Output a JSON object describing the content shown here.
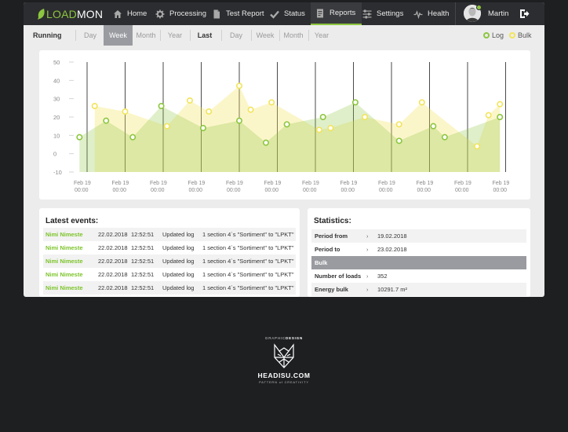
{
  "brand": {
    "part1": "LOAD",
    "part2": "MON"
  },
  "nav": {
    "items": [
      {
        "label": "Home",
        "icon": "home-icon"
      },
      {
        "label": "Processing",
        "icon": "gear-icon"
      },
      {
        "label": "Test Report",
        "icon": "document-icon"
      },
      {
        "label": "Status",
        "icon": "check-icon"
      },
      {
        "label": "Reports",
        "icon": "report-icon",
        "active": true
      },
      {
        "label": "Settings",
        "icon": "sliders-icon"
      },
      {
        "label": "Health",
        "icon": "pulse-icon"
      }
    ],
    "user": "Martin"
  },
  "filters": {
    "running_label": "Running",
    "running_options": [
      "Day",
      "Week",
      "Month",
      "Year"
    ],
    "running_selected": "Week",
    "last_label": "Last",
    "last_options": [
      "Day",
      "Week",
      "Month",
      "Year"
    ],
    "legend_log": "Log",
    "legend_bulk": "Bulk"
  },
  "colors": {
    "accent_green": "#8dc63f",
    "log_line": "#8dc63f",
    "bulk_line": "#f2e45a",
    "nav_bg": "#2c2d30"
  },
  "chart_data": {
    "type": "area",
    "x": [
      "Feb 19\n00:00",
      "Feb 19\n00:00",
      "Feb 19\n00:00",
      "Feb 19\n00:00",
      "Feb 19\n00:00",
      "Feb 19\n00:00",
      "Feb 19\n00:00",
      "Feb 19\n00:00",
      "Feb 19\n00:00",
      "Feb 19\n00:00",
      "Feb 19\n00:00",
      "Feb 19\n00:00",
      "Feb 19\n00:00"
    ],
    "xtick_labels": [
      "Feb 19 00:00",
      "Feb 19 00:00",
      "Feb 19 00:00",
      "Feb 19 00:00",
      "Feb 19 00:00",
      "Feb 19 00:00",
      "Feb 19 00:00",
      "Feb 19 00:00",
      "Feb 19 00:00",
      "Feb 19 00:00",
      "Feb 19 00:00",
      "Feb 19 00:00",
      "Feb 19 00:00"
    ],
    "ylim": [
      -10,
      50
    ],
    "yticks": [
      -10,
      0,
      10,
      20,
      30,
      40,
      50
    ],
    "grid": true,
    "series": [
      {
        "name": "Bulk",
        "color": "#f2e45a",
        "points": [
          [
            0.2,
            26
          ],
          [
            1.0,
            23
          ],
          [
            2.1,
            15
          ],
          [
            2.7,
            29
          ],
          [
            3.2,
            23
          ],
          [
            4.0,
            37
          ],
          [
            4.3,
            24
          ],
          [
            4.85,
            28
          ],
          [
            6.1,
            13
          ],
          [
            6.4,
            14
          ],
          [
            7.3,
            20
          ],
          [
            8.2,
            16
          ],
          [
            8.8,
            28
          ],
          [
            10.25,
            4
          ],
          [
            10.55,
            21
          ],
          [
            10.85,
            27
          ]
        ]
      },
      {
        "name": "Log",
        "color": "#8dc63f",
        "points": [
          [
            -0.2,
            9
          ],
          [
            0.5,
            18
          ],
          [
            1.2,
            9
          ],
          [
            1.95,
            26
          ],
          [
            3.05,
            14
          ],
          [
            4.0,
            18
          ],
          [
            4.7,
            6
          ],
          [
            5.25,
            16
          ],
          [
            6.2,
            20
          ],
          [
            7.05,
            28
          ],
          [
            8.2,
            7
          ],
          [
            9.1,
            15
          ],
          [
            9.4,
            9
          ],
          [
            10.85,
            20
          ]
        ]
      }
    ]
  },
  "events": {
    "title": "Latest events:",
    "rows": [
      {
        "user": "Nimi Nimeste",
        "date": "22.02.2018",
        "time": "12:52:51",
        "action": "Updated log",
        "detail": "1 section 4`s \"Sortiment\" to \"LPKT\""
      },
      {
        "user": "Nimi Nimeste",
        "date": "22.02.2018",
        "time": "12:52:51",
        "action": "Updated log",
        "detail": "1 section 4`s \"Sortiment\" to \"LPKT\""
      },
      {
        "user": "Nimi Nimeste",
        "date": "22.02.2018",
        "time": "12:52:51",
        "action": "Updated log",
        "detail": "1 section 4`s \"Sortiment\" to \"LPKT\""
      },
      {
        "user": "Nimi Nimeste",
        "date": "22.02.2018",
        "time": "12:52:51",
        "action": "Updated log",
        "detail": "1 section 4`s \"Sortiment\" to \"LPKT\""
      },
      {
        "user": "Nimi Nimeste",
        "date": "22.02.2018",
        "time": "12:52:51",
        "action": "Updated log",
        "detail": "1 section 4`s \"Sortiment\" to \"LPKT\""
      }
    ]
  },
  "statistics": {
    "title": "Statistics:",
    "period_from_label": "Period from",
    "period_from": "19.02.2018",
    "period_to_label": "Period to",
    "period_to": "23.02.2018",
    "bulk_header": "Bulk",
    "loads_label": "Number of loads",
    "loads": "352",
    "energy_label": "Energy bulk",
    "energy": "10291.7 m²",
    "arrow": "›"
  },
  "watermark": {
    "top_prefix": "GRAPHIC",
    "top_suffix": "DESIGN",
    "name": "HEADISU.COM",
    "tagline": "PATTERN of CREATIVITY"
  }
}
